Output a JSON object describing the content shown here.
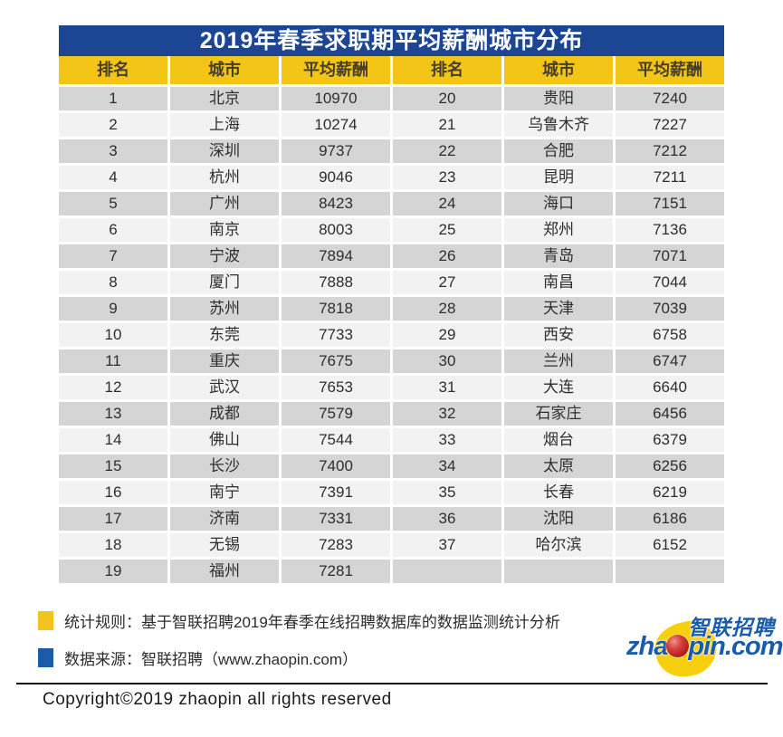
{
  "title": "2019年春季求职期平均薪酬城市分布",
  "chart_data": {
    "type": "table",
    "title": "2019年春季求职期平均薪酬城市分布",
    "columns": [
      "排名",
      "城市",
      "平均薪酬",
      "排名",
      "城市",
      "平均薪酬"
    ],
    "layout": "two-panel table, ranks 1-19 left, ranks 20-37 right",
    "rows": [
      {
        "rank": 1,
        "city": "北京",
        "salary": 10970
      },
      {
        "rank": 2,
        "city": "上海",
        "salary": 10274
      },
      {
        "rank": 3,
        "city": "深圳",
        "salary": 9737
      },
      {
        "rank": 4,
        "city": "杭州",
        "salary": 9046
      },
      {
        "rank": 5,
        "city": "广州",
        "salary": 8423
      },
      {
        "rank": 6,
        "city": "南京",
        "salary": 8003
      },
      {
        "rank": 7,
        "city": "宁波",
        "salary": 7894
      },
      {
        "rank": 8,
        "city": "厦门",
        "salary": 7888
      },
      {
        "rank": 9,
        "city": "苏州",
        "salary": 7818
      },
      {
        "rank": 10,
        "city": "东莞",
        "salary": 7733
      },
      {
        "rank": 11,
        "city": "重庆",
        "salary": 7675
      },
      {
        "rank": 12,
        "city": "武汉",
        "salary": 7653
      },
      {
        "rank": 13,
        "city": "成都",
        "salary": 7579
      },
      {
        "rank": 14,
        "city": "佛山",
        "salary": 7544
      },
      {
        "rank": 15,
        "city": "长沙",
        "salary": 7400
      },
      {
        "rank": 16,
        "city": "南宁",
        "salary": 7391
      },
      {
        "rank": 17,
        "city": "济南",
        "salary": 7331
      },
      {
        "rank": 18,
        "city": "无锡",
        "salary": 7283
      },
      {
        "rank": 19,
        "city": "福州",
        "salary": 7281
      },
      {
        "rank": 20,
        "city": "贵阳",
        "salary": 7240
      },
      {
        "rank": 21,
        "city": "乌鲁木齐",
        "salary": 7227
      },
      {
        "rank": 22,
        "city": "合肥",
        "salary": 7212
      },
      {
        "rank": 23,
        "city": "昆明",
        "salary": 7211
      },
      {
        "rank": 24,
        "city": "海口",
        "salary": 7151
      },
      {
        "rank": 25,
        "city": "郑州",
        "salary": 7136
      },
      {
        "rank": 26,
        "city": "青岛",
        "salary": 7071
      },
      {
        "rank": 27,
        "city": "南昌",
        "salary": 7044
      },
      {
        "rank": 28,
        "city": "天津",
        "salary": 7039
      },
      {
        "rank": 29,
        "city": "西安",
        "salary": 6758
      },
      {
        "rank": 30,
        "city": "兰州",
        "salary": 6747
      },
      {
        "rank": 31,
        "city": "大连",
        "salary": 6640
      },
      {
        "rank": 32,
        "city": "石家庄",
        "salary": 6456
      },
      {
        "rank": 33,
        "city": "烟台",
        "salary": 6379
      },
      {
        "rank": 34,
        "city": "太原",
        "salary": 6256
      },
      {
        "rank": 35,
        "city": "长春",
        "salary": 6219
      },
      {
        "rank": 36,
        "city": "沈阳",
        "salary": 6186
      },
      {
        "rank": 37,
        "city": "哈尔滨",
        "salary": 6152
      }
    ]
  },
  "notes": [
    {
      "text": "统计规则：基于智联招聘2019年春季在线招聘数据库的数据监测统计分析"
    },
    {
      "text": "数据来源：智联招聘（www.zhaopin.com）"
    }
  ],
  "logo": {
    "cn": "智联招聘",
    "en_prefix": "zha",
    "en_suffix": "pin.com"
  },
  "copyright": "Copyright©2019 zhaopin all rights reserved",
  "colors": {
    "title_bg": "#1c4693",
    "header_bg": "#f2c517",
    "header_text": "#473f2d",
    "row_odd": "#d5d5d5",
    "row_even": "#f2f2f2",
    "note_yellow": "#f2c51d",
    "note_blue": "#1c5ba6",
    "logo_blue": "#1a5cac",
    "blob_yellow": "#f6cf0d",
    "ball_red": "#a81418"
  }
}
